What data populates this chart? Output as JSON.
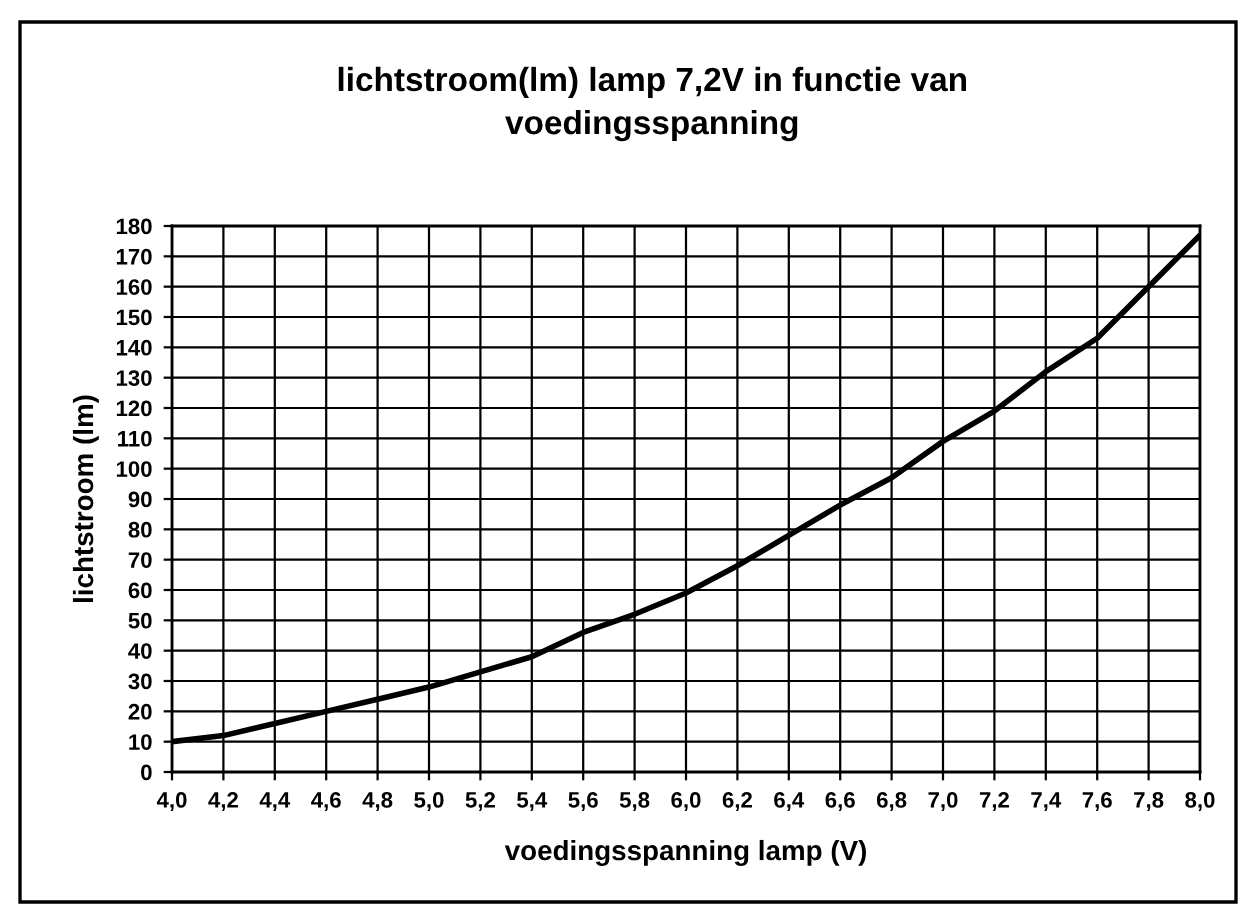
{
  "chart_data": {
    "type": "line",
    "title": "lichtstroom(lm) lamp 7,2V in functie van\nvoedingsspanning",
    "xlabel": "voedingsspanning lamp (V)",
    "ylabel": "lichtstroom (lm)",
    "x": [
      4.0,
      4.2,
      4.4,
      4.6,
      4.8,
      5.0,
      5.2,
      5.4,
      5.6,
      5.8,
      6.0,
      6.2,
      6.4,
      6.6,
      6.8,
      7.0,
      7.2,
      7.4,
      7.6,
      7.8,
      8.0
    ],
    "series": [
      {
        "color": "#000000",
        "values": [
          10,
          12,
          16,
          20,
          24,
          28,
          33,
          38,
          46,
          52,
          59,
          68,
          78,
          88,
          97,
          109,
          119,
          132,
          143,
          160,
          177
        ]
      }
    ],
    "xlim": [
      4.0,
      8.0
    ],
    "xticks": [
      {
        "value": 4.0,
        "label": "4,0"
      },
      {
        "value": 4.2,
        "label": "4,2"
      },
      {
        "value": 4.4,
        "label": "4,4"
      },
      {
        "value": 4.6,
        "label": "4,6"
      },
      {
        "value": 4.8,
        "label": "4,8"
      },
      {
        "value": 5.0,
        "label": "5,0"
      },
      {
        "value": 5.2,
        "label": "5,2"
      },
      {
        "value": 5.4,
        "label": "5,4"
      },
      {
        "value": 5.6,
        "label": "5,6"
      },
      {
        "value": 5.8,
        "label": "5,8"
      },
      {
        "value": 6.0,
        "label": "6,0"
      },
      {
        "value": 6.2,
        "label": "6,2"
      },
      {
        "value": 6.4,
        "label": "6,4"
      },
      {
        "value": 6.6,
        "label": "6,6"
      },
      {
        "value": 6.8,
        "label": "6,8"
      },
      {
        "value": 7.0,
        "label": "7,0"
      },
      {
        "value": 7.2,
        "label": "7,2"
      },
      {
        "value": 7.4,
        "label": "7,4"
      },
      {
        "value": 7.6,
        "label": "7,6"
      },
      {
        "value": 7.8,
        "label": "7,8"
      },
      {
        "value": 8.0,
        "label": "8,0"
      }
    ],
    "ylim": [
      0,
      180
    ],
    "yticks": [
      0,
      10,
      20,
      30,
      40,
      50,
      60,
      70,
      80,
      90,
      100,
      110,
      120,
      130,
      140,
      150,
      160,
      170,
      180
    ],
    "grid": true,
    "marker": "none",
    "line_style": "solid"
  }
}
